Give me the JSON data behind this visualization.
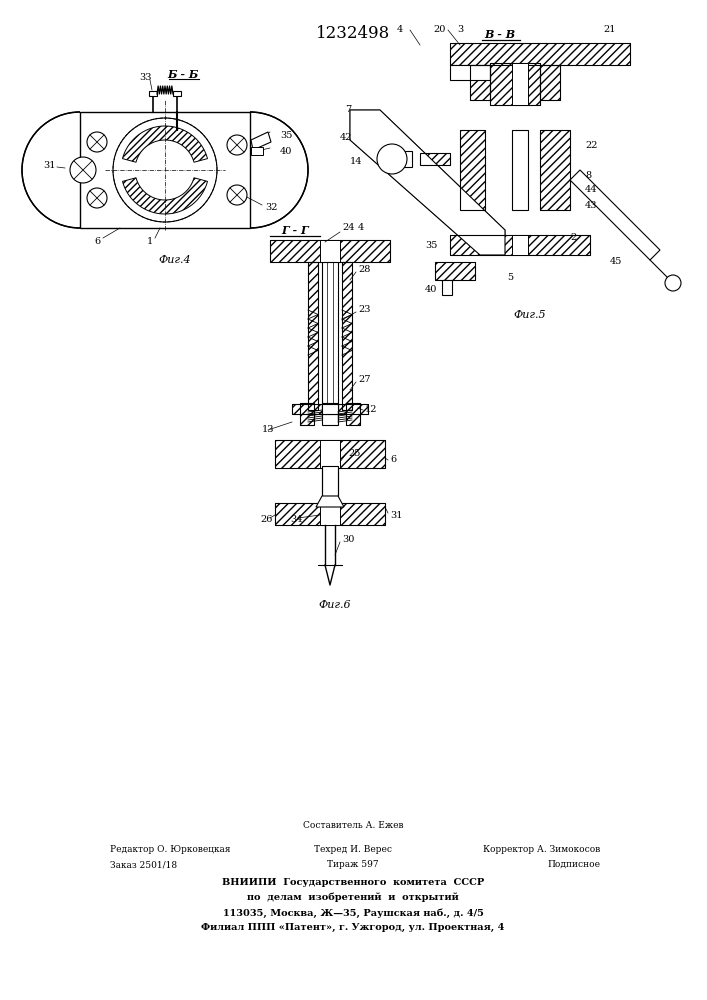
{
  "title": "1232498",
  "title_fontsize": 12,
  "background_color": "#ffffff",
  "fig4_label": "Фиг.4",
  "fig5_label": "Фиг.5",
  "fig6_label": "Фиг.6",
  "section_b_label": "Б - Б",
  "section_v_label": "В - В",
  "section_g_label": "Г - Г",
  "footer_line1": "Составитель А. Ежев",
  "footer_line2_left": "Редактор О. Юрковецкая",
  "footer_line2_mid": "Техред И. Верес",
  "footer_line2_right": "Корректор А. Зимокосов",
  "footer_line3_left": "Заказ 2501/18",
  "footer_line3_mid": "Тираж 597",
  "footer_line3_right": "Подписное",
  "footer_line4": "ВНИИПИ  Государственного  комитета  СССР",
  "footer_line5": "по  делам  изобретений  и  открытий",
  "footer_line6": "113035, Москва, Ж—35, Раушская наб., д. 4/5",
  "footer_line7": "Филиал ППП «Патент», г. Ужгород, ул. Проектная, 4",
  "line_color": "#000000",
  "font_size_labels": 7,
  "font_size_numbers": 7
}
